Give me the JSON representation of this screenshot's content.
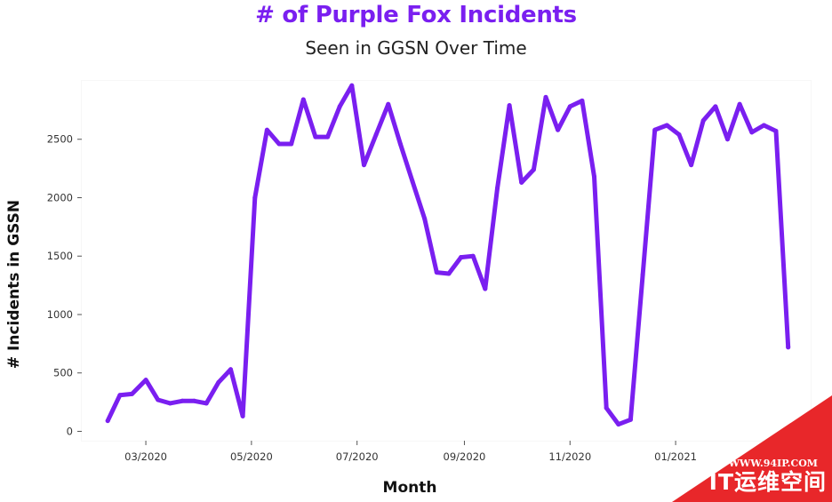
{
  "chart_data": {
    "type": "line",
    "title": "# of Purple Fox Incidents",
    "subtitle": "Seen in GGSN Over Time",
    "xlabel": "Month",
    "ylabel": "# Incidents in GSSN",
    "x_ticks": [
      "03/2020",
      "05/2020",
      "07/2020",
      "09/2020",
      "11/2020",
      "01/2021"
    ],
    "x_range": [
      "2020-01-24",
      "2021-03-20"
    ],
    "ylim": [
      -80,
      3000
    ],
    "y_ticks": [
      0,
      500,
      1000,
      1500,
      2000,
      2500
    ],
    "grid": false,
    "line_color": "#7A1FF0",
    "series": [
      {
        "x": [
          "2020-02-08",
          "2020-02-15",
          "2020-02-22",
          "2020-03-01",
          "2020-03-08",
          "2020-03-15",
          "2020-03-22",
          "2020-03-29",
          "2020-04-05",
          "2020-04-12",
          "2020-04-19",
          "2020-04-26",
          "2020-05-03",
          "2020-05-10",
          "2020-05-17",
          "2020-05-24",
          "2020-05-31",
          "2020-06-07",
          "2020-06-14",
          "2020-06-21",
          "2020-06-28",
          "2020-07-05",
          "2020-07-12",
          "2020-07-19",
          "2020-07-26",
          "2020-08-02",
          "2020-08-09",
          "2020-08-16",
          "2020-08-23",
          "2020-08-30",
          "2020-09-06",
          "2020-09-13",
          "2020-09-20",
          "2020-09-27",
          "2020-10-04",
          "2020-10-11",
          "2020-10-18",
          "2020-10-25",
          "2020-11-01",
          "2020-11-08",
          "2020-11-15",
          "2020-11-22",
          "2020-11-29",
          "2020-12-06",
          "2020-12-13",
          "2020-12-20",
          "2020-12-27",
          "2021-01-03",
          "2021-01-10",
          "2021-01-17",
          "2021-01-24",
          "2021-01-31",
          "2021-02-07",
          "2021-02-14",
          "2021-02-21",
          "2021-02-28",
          "2021-03-07"
        ],
        "values": [
          90,
          310,
          320,
          440,
          270,
          240,
          260,
          260,
          240,
          420,
          530,
          130,
          2000,
          2580,
          2460,
          2460,
          2840,
          2520,
          2520,
          2780,
          2960,
          2280,
          2540,
          2800,
          2460,
          2140,
          1820,
          1360,
          1350,
          1490,
          1500,
          1220,
          2080,
          2790,
          2130,
          2240,
          2860,
          2580,
          2780,
          2830,
          2180,
          200,
          60,
          100,
          1340,
          2580,
          2620,
          2540,
          2280,
          2660,
          2780,
          2500,
          2800,
          2560,
          2620,
          2570,
          720
        ]
      }
    ]
  },
  "watermark": {
    "url": "WWW.94IP.COM",
    "name": "IT运维空间"
  }
}
